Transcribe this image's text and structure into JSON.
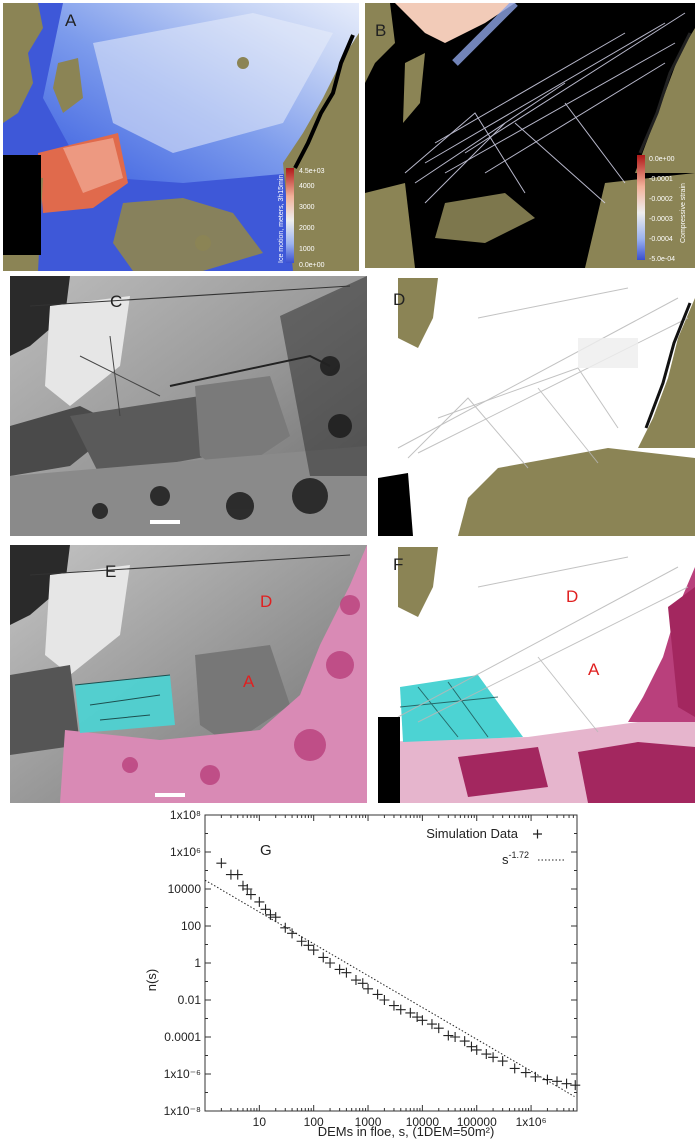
{
  "panels": {
    "A": {
      "label": "A",
      "colorbar": {
        "max_label": "4.5e+03",
        "ticks": [
          "4000",
          "3000",
          "2000",
          "1000"
        ],
        "min_label": "0.0e+00",
        "title": "Ice motion, meters, 3h15min"
      },
      "colors": {
        "land": "#8b8455",
        "high": "#e05a3a",
        "low": "#3b5bd9",
        "mid": "#c9d3f2"
      }
    },
    "B": {
      "label": "B",
      "colorbar": {
        "max_label": "0.0e+00",
        "ticks": [
          "-0.0001",
          "-0.0002",
          "-0.0003",
          "-0.0004"
        ],
        "min_label": "-5.0e-04",
        "title": "Compressive strain"
      }
    },
    "C": {
      "label": "C"
    },
    "D": {
      "label": "D"
    },
    "E": {
      "label": "E",
      "markers": [
        "D",
        "A"
      ]
    },
    "F": {
      "label": "F",
      "markers": [
        "D",
        "A"
      ]
    },
    "G": {
      "label": "G"
    }
  },
  "chart_data": {
    "type": "scatter",
    "xlabel": "DEMs in floe, s, (1DEM=50m²)",
    "ylabel": "n(s)",
    "xscale": "log",
    "yscale": "log",
    "xlim": [
      1,
      7000000
    ],
    "ylim": [
      1e-08,
      100000000.0
    ],
    "x_ticks": [
      "10",
      "100",
      "1000",
      "10000",
      "100000",
      "1x10⁶"
    ],
    "y_ticks": [
      "1x10⁸",
      "1x10⁶",
      "10000",
      "100",
      "1",
      "0.01",
      "0.0001",
      "1x10⁻⁶",
      "1x10⁻⁸"
    ],
    "legend": {
      "position": "top-right",
      "entries": [
        "Simulation Data",
        "s^-1.72"
      ]
    },
    "legend_text": {
      "data": "Simulation Data",
      "fit_base": "s",
      "fit_exp": "-1.72"
    },
    "series": [
      {
        "name": "Simulation Data",
        "marker": "+",
        "points": [
          [
            2,
            250000
          ],
          [
            3,
            60000
          ],
          [
            4,
            60000
          ],
          [
            5,
            15000
          ],
          [
            6,
            10000
          ],
          [
            7,
            5000
          ],
          [
            10,
            2000
          ],
          [
            13,
            800
          ],
          [
            16,
            400
          ],
          [
            20,
            300
          ],
          [
            30,
            80
          ],
          [
            40,
            40
          ],
          [
            60,
            15
          ],
          [
            80,
            9
          ],
          [
            100,
            5
          ],
          [
            150,
            2
          ],
          [
            200,
            1
          ],
          [
            300,
            0.45
          ],
          [
            400,
            0.3
          ],
          [
            600,
            0.12
          ],
          [
            800,
            0.08
          ],
          [
            1000,
            0.04
          ],
          [
            1500,
            0.02
          ],
          [
            2000,
            0.01
          ],
          [
            3000,
            0.005
          ],
          [
            4000,
            0.003
          ],
          [
            6000,
            0.002
          ],
          [
            8000,
            0.0012
          ],
          [
            10000,
            0.0008
          ],
          [
            15000,
            0.0005
          ],
          [
            20000,
            0.0003
          ],
          [
            30000,
            0.00012
          ],
          [
            40000,
            0.0001
          ],
          [
            60000,
            6e-05
          ],
          [
            80000,
            3e-05
          ],
          [
            100000,
            2e-05
          ],
          [
            150000,
            1.2e-05
          ],
          [
            200000,
            8e-06
          ],
          [
            300000,
            5e-06
          ],
          [
            500000,
            2e-06
          ],
          [
            800000,
            1.2e-06
          ],
          [
            1200000,
            7e-07
          ],
          [
            2000000,
            5e-07
          ],
          [
            3000000,
            4e-07
          ],
          [
            4500000,
            3e-07
          ],
          [
            6500000,
            2.5e-07
          ]
        ]
      },
      {
        "name": "s^-1.72",
        "type": "line",
        "style": "dotted",
        "exponent": -1.72,
        "amplitude": 30000
      }
    ]
  }
}
